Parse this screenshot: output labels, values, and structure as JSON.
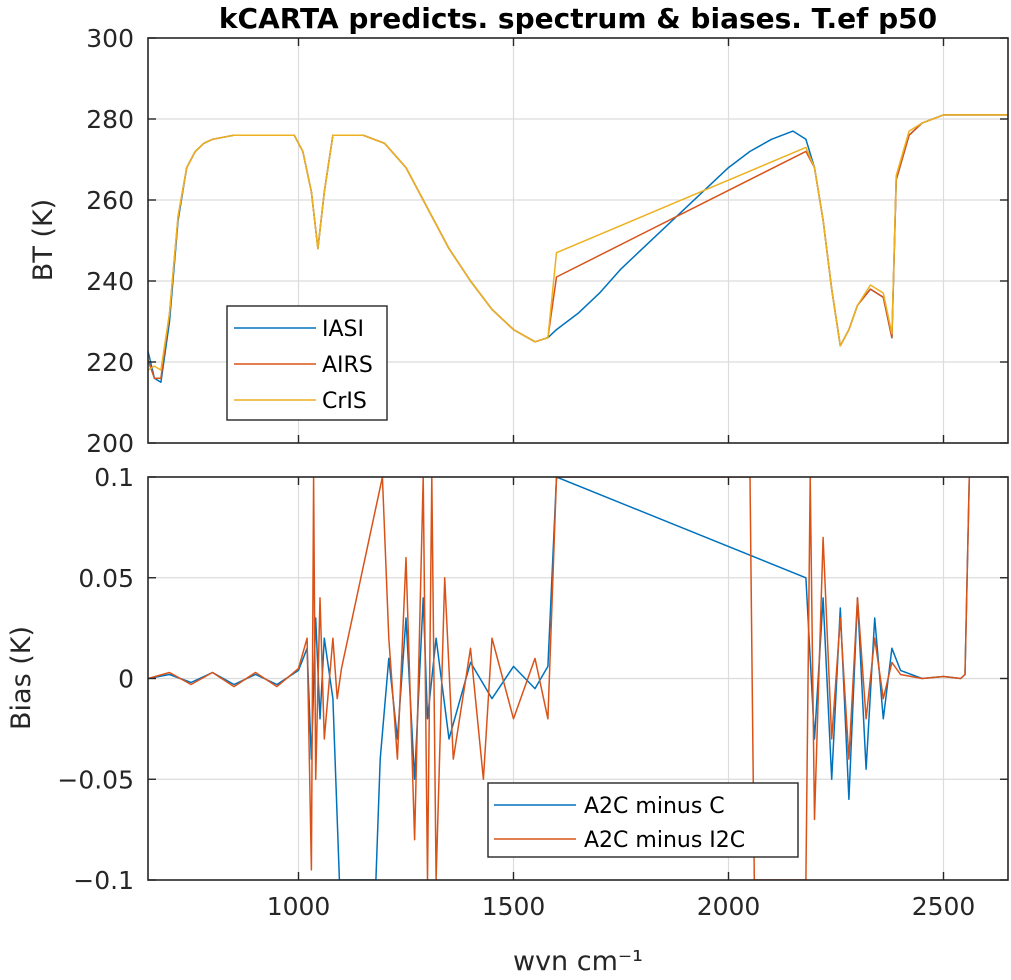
{
  "figure": {
    "title": "kCARTA predicts. spectrum & biases. T.ef p50"
  },
  "chart_data": [
    {
      "type": "line",
      "title": "kCARTA predicts. spectrum & biases. T.ef p50",
      "xlabel": "",
      "ylabel": "BT (K)",
      "xlim": [
        650,
        2650
      ],
      "ylim": [
        200,
        300
      ],
      "xticks": [
        1000,
        1500,
        2000,
        2500
      ],
      "yticks": [
        200,
        220,
        240,
        260,
        280,
        300
      ],
      "xtick_labels": [],
      "ytick_labels": [
        "200",
        "220",
        "240",
        "260",
        "280",
        "300"
      ],
      "grid": true,
      "legend_position": "lower-left",
      "series": [
        {
          "name": "IASI",
          "color": "#0072BD",
          "x": [
            645,
            665,
            680,
            700,
            720,
            740,
            760,
            780,
            800,
            850,
            900,
            950,
            990,
            1010,
            1030,
            1045,
            1060,
            1080,
            1100,
            1150,
            1200,
            1250,
            1300,
            1350,
            1400,
            1450,
            1500,
            1550,
            1580,
            1600,
            1650,
            1700,
            1750,
            1800,
            1850,
            1900,
            1950,
            2000,
            2050,
            2100,
            2150,
            2180,
            2200,
            2220,
            2240,
            2260,
            2280,
            2300,
            2330,
            2360,
            2380,
            2390,
            2420,
            2450,
            2500,
            2550,
            2600,
            2650
          ],
          "y": [
            225,
            216,
            215,
            230,
            255,
            268,
            272,
            274,
            275,
            276,
            276,
            276,
            276,
            272,
            262,
            248,
            262,
            276,
            276,
            276,
            274,
            268,
            258,
            248,
            240,
            233,
            228,
            225,
            226,
            228,
            232,
            237,
            243,
            248,
            253,
            258,
            263,
            268,
            272,
            275,
            277,
            275,
            268,
            255,
            238,
            224,
            228,
            234,
            238,
            236,
            226,
            265,
            276,
            279,
            281,
            281,
            281,
            281
          ]
        },
        {
          "name": "AIRS",
          "color": "#D95319",
          "x": [
            645,
            665,
            680,
            700,
            720,
            740,
            760,
            780,
            800,
            850,
            900,
            950,
            990,
            1010,
            1030,
            1045,
            1060,
            1080,
            1100,
            1150,
            1200,
            1250,
            1300,
            1350,
            1400,
            1450,
            1500,
            1550,
            1580,
            1600,
            2180,
            2200,
            2220,
            2240,
            2260,
            2280,
            2300,
            2330,
            2360,
            2380,
            2390,
            2420,
            2450,
            2500,
            2550,
            2600,
            2650
          ],
          "y": [
            222,
            216,
            216,
            232,
            256,
            268,
            272,
            274,
            275,
            276,
            276,
            276,
            276,
            272,
            262,
            248,
            262,
            276,
            276,
            276,
            274,
            268,
            258,
            248,
            240,
            233,
            228,
            225,
            226,
            241,
            272,
            268,
            255,
            238,
            224,
            228,
            234,
            238,
            236,
            226,
            265,
            276,
            279,
            281,
            281,
            281,
            281
          ]
        },
        {
          "name": "CrIS",
          "color": "#EDB120",
          "x": [
            650,
            665,
            680,
            700,
            720,
            740,
            760,
            780,
            800,
            850,
            900,
            950,
            990,
            1010,
            1030,
            1045,
            1060,
            1080,
            1100,
            1150,
            1200,
            1250,
            1300,
            1350,
            1400,
            1450,
            1500,
            1550,
            1580,
            1600,
            2180,
            2200,
            2220,
            2240,
            2260,
            2280,
            2300,
            2330,
            2360,
            2380,
            2390,
            2420,
            2450,
            2500,
            2550,
            2600,
            2650
          ],
          "y": [
            218,
            219,
            218,
            232,
            256,
            268,
            272,
            274,
            275,
            276,
            276,
            276,
            276,
            272,
            262,
            248,
            262,
            276,
            276,
            276,
            274,
            268,
            258,
            248,
            240,
            233,
            228,
            225,
            226,
            247,
            273,
            268,
            255,
            238,
            224,
            228,
            234,
            239,
            237,
            227,
            266,
            277,
            279,
            281,
            281,
            281,
            281
          ]
        }
      ]
    },
    {
      "type": "line",
      "title": "",
      "xlabel": "wvn cm⁻¹",
      "ylabel": "Bias (K)",
      "xlim": [
        650,
        2650
      ],
      "ylim": [
        -0.1,
        0.1
      ],
      "xticks": [
        1000,
        1500,
        2000,
        2500
      ],
      "yticks": [
        -0.1,
        -0.05,
        0,
        0.05,
        0.1
      ],
      "xtick_labels": [
        "1000",
        "1500",
        "2000",
        "2500"
      ],
      "ytick_labels": [
        "-0.1",
        "-0.05",
        "0",
        "0.05",
        "0.1"
      ],
      "grid": true,
      "legend_position": "lower-center",
      "series": [
        {
          "name": "A2C minus C",
          "color": "#0072BD",
          "x": [
            650,
            700,
            750,
            800,
            850,
            900,
            950,
            1000,
            1020,
            1030,
            1040,
            1050,
            1060,
            1080,
            1095,
            1100,
            1180,
            1190,
            1210,
            1230,
            1250,
            1270,
            1290,
            1300,
            1320,
            1350,
            1400,
            1450,
            1500,
            1550,
            1580,
            1600,
            2180,
            2200,
            2220,
            2240,
            2260,
            2280,
            2300,
            2320,
            2340,
            2360,
            2380,
            2400,
            2450,
            2500,
            2540,
            2550,
            2560
          ],
          "y": [
            0.0,
            0.002,
            -0.002,
            0.003,
            -0.003,
            0.002,
            -0.003,
            0.004,
            0.015,
            -0.04,
            0.03,
            -0.02,
            0.02,
            -0.01,
            -0.1,
            -0.1,
            -0.1,
            -0.04,
            0.01,
            -0.03,
            0.03,
            -0.05,
            0.04,
            -0.02,
            0.02,
            -0.03,
            0.008,
            -0.01,
            0.006,
            -0.005,
            0.006,
            0.1,
            0.05,
            -0.03,
            0.04,
            -0.05,
            0.035,
            -0.06,
            0.04,
            -0.045,
            0.03,
            -0.02,
            0.015,
            0.004,
            0.0,
            0.001,
            0.0,
            0.002,
            0.1
          ]
        },
        {
          "name": "A2C minus I2C",
          "color": "#D95319",
          "x": [
            650,
            700,
            750,
            800,
            850,
            900,
            950,
            1000,
            1020,
            1030,
            1035,
            1040,
            1050,
            1060,
            1080,
            1090,
            1100,
            1195,
            1210,
            1230,
            1250,
            1270,
            1290,
            1300,
            1310,
            1320,
            1340,
            1360,
            1400,
            1430,
            1450,
            1500,
            1550,
            1580,
            1600,
            2050,
            2060,
            2180,
            2190,
            2200,
            2220,
            2240,
            2260,
            2280,
            2300,
            2320,
            2340,
            2360,
            2380,
            2400,
            2450,
            2500,
            2540,
            2550,
            2560
          ],
          "y": [
            0.0,
            0.003,
            -0.003,
            0.003,
            -0.004,
            0.003,
            -0.004,
            0.005,
            0.02,
            -0.095,
            0.1,
            -0.05,
            0.04,
            -0.03,
            0.02,
            -0.01,
            0.005,
            0.1,
            0.02,
            -0.04,
            0.06,
            -0.08,
            0.1,
            -0.1,
            0.1,
            -0.1,
            0.05,
            -0.04,
            0.015,
            -0.05,
            0.02,
            -0.02,
            0.01,
            -0.02,
            0.1,
            0.1,
            -0.1,
            -0.1,
            0.1,
            -0.07,
            0.07,
            -0.03,
            0.03,
            -0.04,
            0.04,
            -0.02,
            0.02,
            -0.01,
            0.008,
            0.002,
            0.0,
            0.001,
            0.0,
            0.002,
            0.1
          ]
        }
      ]
    }
  ]
}
